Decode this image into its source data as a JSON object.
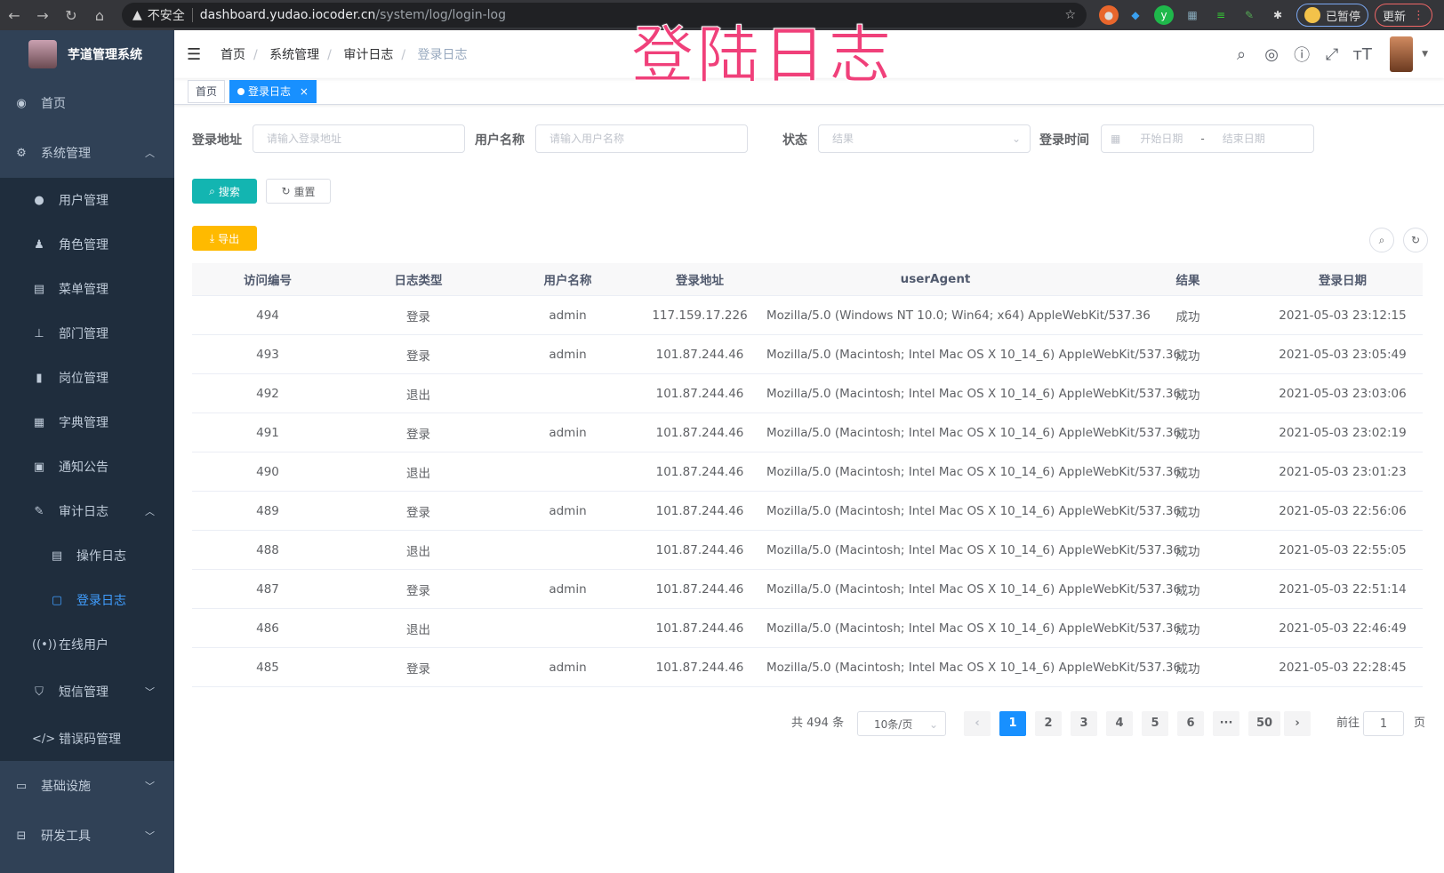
{
  "browser": {
    "security": "不安全",
    "host": "dashboard.yudao.iocoder.cn",
    "path": "/system/log/login-log",
    "profile": "已暂停",
    "update": "更新"
  },
  "overlay_title": "登陆日志",
  "app": {
    "name": "芋道管理系统"
  },
  "sidebar": {
    "home": "首页",
    "system": "系统管理",
    "system_items": [
      "用户管理",
      "角色管理",
      "菜单管理",
      "部门管理",
      "岗位管理",
      "字典管理",
      "通知公告"
    ],
    "audit": "审计日志",
    "audit_items": [
      "操作日志",
      "登录日志"
    ],
    "online": "在线用户",
    "sms": "短信管理",
    "errcode": "错误码管理",
    "infra": "基础设施",
    "devtools": "研发工具"
  },
  "breadcrumb": [
    "首页",
    "系统管理",
    "审计日志",
    "登录日志"
  ],
  "tags": {
    "home": "首页",
    "current": "登录日志",
    "close": "×"
  },
  "filters": {
    "ip_label": "登录地址",
    "ip_placeholder": "请输入登录地址",
    "user_label": "用户名称",
    "user_placeholder": "请输入用户名称",
    "status_label": "状态",
    "status_placeholder": "结果",
    "time_label": "登录时间",
    "start_placeholder": "开始日期",
    "range_sep": "-",
    "end_placeholder": "结束日期"
  },
  "buttons": {
    "search": "搜索",
    "reset": "重置",
    "export": "导出"
  },
  "table": {
    "columns": [
      "访问编号",
      "日志类型",
      "用户名称",
      "登录地址",
      "userAgent",
      "结果",
      "登录日期"
    ],
    "rows": [
      [
        "494",
        "登录",
        "admin",
        "117.159.17.226",
        "Mozilla/5.0 (Windows NT 10.0; Win64; x64) AppleWebKit/537.36",
        "成功",
        "2021-05-03 23:12:15"
      ],
      [
        "493",
        "登录",
        "admin",
        "101.87.244.46",
        "Mozilla/5.0 (Macintosh; Intel Mac OS X 10_14_6) AppleWebKit/537.36",
        "成功",
        "2021-05-03 23:05:49"
      ],
      [
        "492",
        "退出",
        "",
        "101.87.244.46",
        "Mozilla/5.0 (Macintosh; Intel Mac OS X 10_14_6) AppleWebKit/537.36",
        "成功",
        "2021-05-03 23:03:06"
      ],
      [
        "491",
        "登录",
        "admin",
        "101.87.244.46",
        "Mozilla/5.0 (Macintosh; Intel Mac OS X 10_14_6) AppleWebKit/537.36",
        "成功",
        "2021-05-03 23:02:19"
      ],
      [
        "490",
        "退出",
        "",
        "101.87.244.46",
        "Mozilla/5.0 (Macintosh; Intel Mac OS X 10_14_6) AppleWebKit/537.36",
        "成功",
        "2021-05-03 23:01:23"
      ],
      [
        "489",
        "登录",
        "admin",
        "101.87.244.46",
        "Mozilla/5.0 (Macintosh; Intel Mac OS X 10_14_6) AppleWebKit/537.36",
        "成功",
        "2021-05-03 22:56:06"
      ],
      [
        "488",
        "退出",
        "",
        "101.87.244.46",
        "Mozilla/5.0 (Macintosh; Intel Mac OS X 10_14_6) AppleWebKit/537.36",
        "成功",
        "2021-05-03 22:55:05"
      ],
      [
        "487",
        "登录",
        "admin",
        "101.87.244.46",
        "Mozilla/5.0 (Macintosh; Intel Mac OS X 10_14_6) AppleWebKit/537.36",
        "成功",
        "2021-05-03 22:51:14"
      ],
      [
        "486",
        "退出",
        "",
        "101.87.244.46",
        "Mozilla/5.0 (Macintosh; Intel Mac OS X 10_14_6) AppleWebKit/537.36",
        "成功",
        "2021-05-03 22:46:49"
      ],
      [
        "485",
        "登录",
        "admin",
        "101.87.244.46",
        "Mozilla/5.0 (Macintosh; Intel Mac OS X 10_14_6) AppleWebKit/537.36",
        "成功",
        "2021-05-03 22:28:45"
      ]
    ]
  },
  "pagination": {
    "total": "共 494 条",
    "page_size": "10条/页",
    "pages": [
      "1",
      "2",
      "3",
      "4",
      "5",
      "6",
      "···",
      "50"
    ],
    "current": "1",
    "goto_label": "前往",
    "goto_value": "1",
    "goto_suffix": "页",
    "prev": "‹",
    "next": "›"
  },
  "colors": {
    "sidebar": "#304156",
    "submenu": "#1f2d3d",
    "primary": "#1890ff",
    "search": "#13c2c2",
    "export": "#ffba00",
    "overlay": "#f0407a"
  }
}
